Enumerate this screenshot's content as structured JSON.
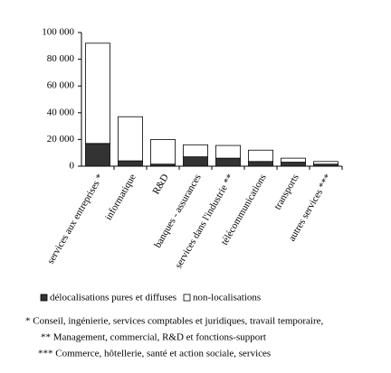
{
  "chart_data": {
    "type": "stacked_bar",
    "categories": [
      "services aux entreprises *",
      "informatique",
      "R&D",
      "banques - assurances",
      "services dans l'industrie **",
      "télécommunications",
      "transports",
      "autres services ***"
    ],
    "series": [
      {
        "name": "délocalisations pures et diffuses",
        "color": "#333333",
        "values": [
          17000,
          4000,
          1500,
          7000,
          6000,
          3500,
          3000,
          1500
        ]
      },
      {
        "name": "non-localisations",
        "color": "#ffffff",
        "values": [
          75000,
          33000,
          18500,
          9000,
          9500,
          8500,
          3000,
          2000
        ]
      }
    ],
    "ylim": [
      0,
      100000
    ],
    "yticks": [
      0,
      {
        "value": 20000,
        "label": "20 000"
      },
      {
        "value": 40000,
        "label": "40 000"
      },
      {
        "value": 60000,
        "label": "60 000"
      },
      {
        "value": 80000,
        "label": "80 000"
      },
      {
        "value": 100000,
        "label": "100 000"
      }
    ],
    "legend": "bottom",
    "footnotes": [
      "*  Conseil, ingénierie, services comptables et juridiques, travail temporaire,",
      "** Management, commercial, R&D et fonctions-support",
      "*** Commerce, hôtellerie, santé et action sociale, services"
    ]
  }
}
